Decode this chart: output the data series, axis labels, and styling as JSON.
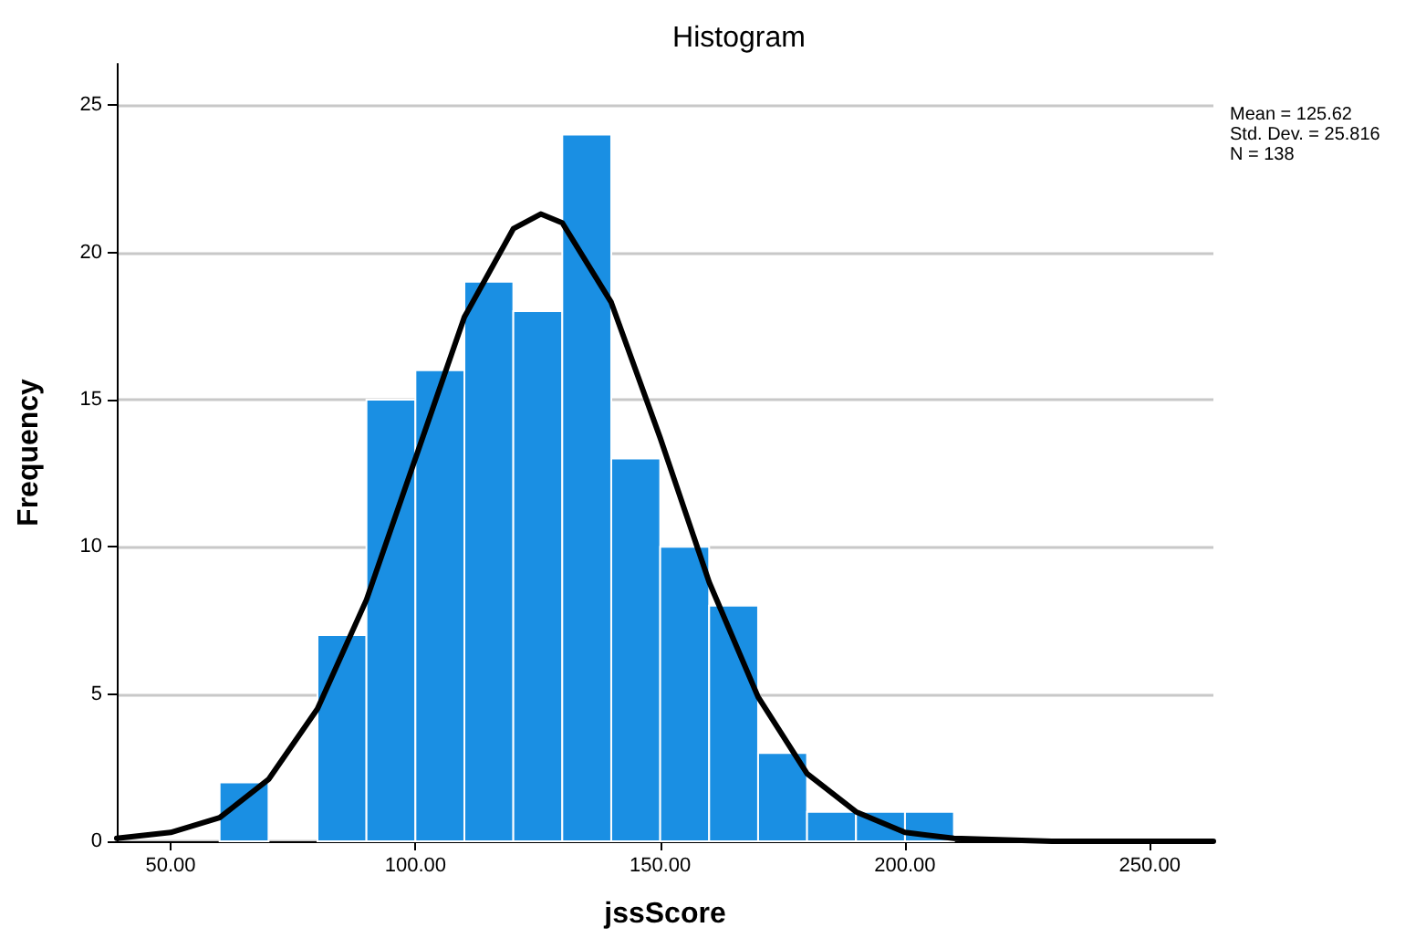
{
  "chart_data": {
    "type": "histogram",
    "title": "Histogram",
    "xlabel": "jssScore",
    "ylabel": "Frequency",
    "bins": [
      60,
      70,
      80,
      90,
      100,
      110,
      120,
      130,
      140,
      150,
      160,
      170,
      180,
      190,
      200,
      210
    ],
    "values": [
      2,
      0,
      7,
      15,
      16,
      19,
      18,
      24,
      13,
      10,
      8,
      3,
      1,
      1,
      1
    ],
    "color": "#1a8fe3",
    "series": [
      {
        "type": "line",
        "color": "#000000",
        "marker": "none",
        "line_style": "solid",
        "x": [
          39,
          50,
          60,
          70,
          80,
          90,
          100,
          110,
          120,
          125.6,
          130,
          140,
          150,
          160,
          170,
          180,
          190,
          200,
          210,
          230,
          263
        ],
        "values": [
          0.1,
          0.3,
          0.8,
          2.1,
          4.5,
          8.2,
          13.0,
          17.8,
          20.8,
          21.3,
          21.0,
          18.3,
          13.7,
          8.8,
          4.9,
          2.3,
          1.0,
          0.3,
          0.1,
          0.0,
          0.0
        ]
      }
    ],
    "xlim": [
      39,
      263
    ],
    "xticks": [
      {
        "value": 50,
        "label": "50.00"
      },
      {
        "value": 100,
        "label": "100.00"
      },
      {
        "value": 150,
        "label": "150.00"
      },
      {
        "value": 200,
        "label": "200.00"
      },
      {
        "value": 250,
        "label": "250.00"
      }
    ],
    "ylim": [
      0,
      26.4
    ],
    "yticks": [
      0,
      5,
      10,
      15,
      20,
      25
    ],
    "grid": "y",
    "annotations": [
      "Mean = 125.62",
      "Std. Dev. = 25.816",
      "N = 138"
    ]
  }
}
